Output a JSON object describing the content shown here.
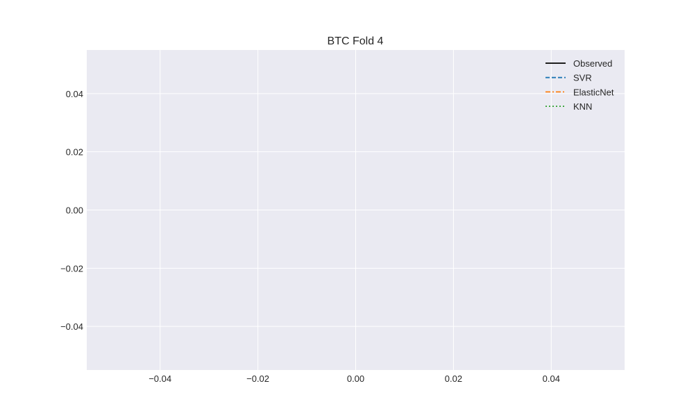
{
  "chart_data": {
    "type": "line",
    "title": "BTC Fold 4",
    "xlabel": "",
    "ylabel": "",
    "xlim": [
      -0.055,
      0.055
    ],
    "ylim": [
      -0.055,
      0.055
    ],
    "x_ticks": [
      -0.04,
      -0.02,
      0.0,
      0.02,
      0.04
    ],
    "x_tick_labels": [
      "−0.04",
      "−0.02",
      "0.00",
      "0.02",
      "0.04"
    ],
    "y_ticks": [
      0.04,
      0.02,
      0.0,
      -0.02,
      -0.04
    ],
    "y_tick_labels": [
      "0.04",
      "0.02",
      "0.00",
      "−0.02",
      "−0.04"
    ],
    "grid": true,
    "legend_position": "top-right",
    "series": [
      {
        "name": "Observed",
        "color": "#000000",
        "line_style": "solid",
        "x": [],
        "y": []
      },
      {
        "name": "SVR",
        "color": "#1f77b4",
        "line_style": "dashed",
        "x": [],
        "y": []
      },
      {
        "name": "ElasticNet",
        "color": "#ff7f0e",
        "line_style": "dashdot",
        "x": [],
        "y": []
      },
      {
        "name": "KNN",
        "color": "#2ca02c",
        "line_style": "dotted",
        "x": [],
        "y": []
      }
    ],
    "colors": {
      "plot_background": "#eaeaf2",
      "grid": "#ffffff",
      "text": "#262626"
    }
  }
}
